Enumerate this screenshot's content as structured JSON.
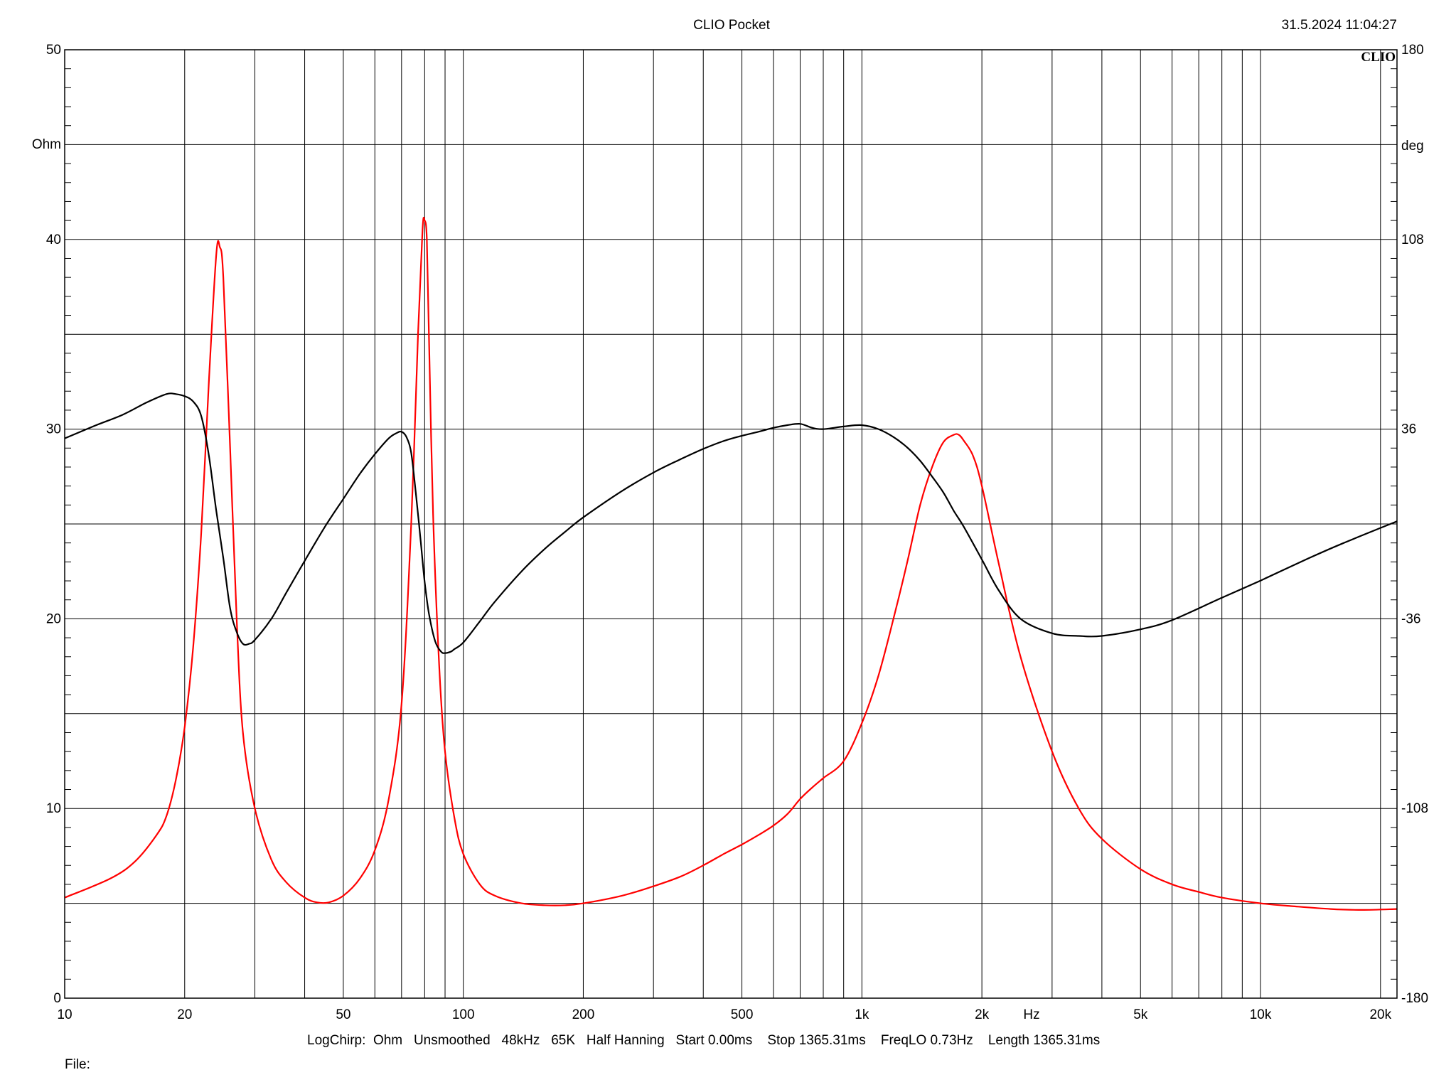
{
  "header": {
    "title": "CLIO Pocket",
    "timestamp": "31.5.2024 11:04:27",
    "brand": "CLIO"
  },
  "footer": {
    "settings": "LogChirp:  Ohm   Unsmoothed   48kHz   65K   Half Hanning   Start 0.00ms    Stop 1365.31ms    FreqLO 0.73Hz    Length 1365.31ms",
    "file_label": "File:"
  },
  "chart_data": {
    "type": "line",
    "title": "CLIO Pocket",
    "x_scale": "log",
    "xlim": [
      10,
      22000
    ],
    "xunit": "Hz",
    "x_tick_labels": [
      {
        "value": 10,
        "label": "10"
      },
      {
        "value": 20,
        "label": "20"
      },
      {
        "value": 50,
        "label": "50"
      },
      {
        "value": 100,
        "label": "100"
      },
      {
        "value": 200,
        "label": "200"
      },
      {
        "value": 500,
        "label": "500"
      },
      {
        "value": 1000,
        "label": "1k"
      },
      {
        "value": 2000,
        "label": "2k"
      },
      {
        "value": 5000,
        "label": "5k"
      },
      {
        "value": 10000,
        "label": "10k"
      },
      {
        "value": 20000,
        "label": "20k"
      }
    ],
    "left_axis": {
      "unit": "Ohm",
      "ylim": [
        0,
        50
      ],
      "ticks": [
        0,
        10,
        20,
        30,
        40,
        50
      ]
    },
    "right_axis": {
      "unit": "deg",
      "ylim": [
        -180,
        180
      ],
      "ticks": [
        -180,
        -108,
        -36,
        36,
        108,
        180
      ]
    },
    "grid": true,
    "series": [
      {
        "axis": "left",
        "color": "#ff0000",
        "x": [
          10,
          13,
          15,
          17,
          18,
          19,
          20,
          21,
          22,
          23,
          24,
          24.5,
          25,
          26,
          27,
          28,
          30,
          33,
          36,
          40,
          43,
          46,
          50,
          55,
          60,
          65,
          70,
          74,
          77,
          79,
          80,
          81,
          82,
          84,
          87,
          90,
          95,
          100,
          110,
          120,
          140,
          160,
          180,
          200,
          250,
          300,
          350,
          400,
          450,
          500,
          550,
          600,
          650,
          700,
          750,
          800,
          900,
          1000,
          1100,
          1200,
          1300,
          1400,
          1500,
          1600,
          1700,
          1750,
          1800,
          1900,
          2000,
          2200,
          2500,
          3000,
          3500,
          4000,
          5000,
          6000,
          7000,
          8000,
          10000,
          12000,
          15000,
          18000,
          22000
        ],
        "values": [
          5.3,
          6.3,
          7.2,
          8.6,
          9.6,
          11.5,
          14.3,
          18.5,
          24.5,
          32.5,
          39.2,
          39.6,
          38.0,
          29.0,
          20.0,
          14.0,
          10.0,
          7.3,
          6.1,
          5.3,
          5.05,
          5.05,
          5.4,
          6.3,
          7.8,
          10.5,
          15.5,
          25.0,
          35.0,
          40.5,
          41.0,
          40.0,
          35.0,
          25.5,
          17.5,
          13.0,
          9.5,
          7.6,
          6.0,
          5.4,
          5.0,
          4.9,
          4.9,
          5.0,
          5.4,
          5.9,
          6.4,
          7.0,
          7.6,
          8.1,
          8.6,
          9.1,
          9.7,
          10.5,
          11.1,
          11.6,
          12.5,
          14.5,
          17.0,
          20.0,
          23.0,
          26.0,
          28.0,
          29.3,
          29.7,
          29.7,
          29.4,
          28.6,
          27.0,
          23.0,
          18.0,
          13.0,
          10.0,
          8.4,
          6.8,
          6.0,
          5.6,
          5.3,
          5.0,
          4.85,
          4.7,
          4.65,
          4.7
        ]
      },
      {
        "axis": "right",
        "color": "#000000",
        "x": [
          10,
          12,
          14,
          16,
          18,
          19,
          20,
          21,
          22,
          23,
          24,
          25,
          26,
          27,
          28,
          29,
          30,
          33,
          36,
          40,
          45,
          50,
          55,
          60,
          65,
          68,
          70,
          72,
          74,
          76,
          78,
          80,
          82,
          85,
          88,
          90,
          93,
          95,
          100,
          110,
          120,
          140,
          160,
          180,
          200,
          250,
          300,
          350,
          400,
          450,
          500,
          550,
          600,
          650,
          700,
          750,
          800,
          900,
          1000,
          1100,
          1200,
          1300,
          1400,
          1500,
          1600,
          1700,
          1800,
          2000,
          2200,
          2500,
          3000,
          3500,
          4000,
          5000,
          6000,
          8000,
          10000,
          13000,
          16000,
          22000
        ],
        "values": [
          32.5,
          37.5,
          41.5,
          46.0,
          49.3,
          49.3,
          48.5,
          46.5,
          41.0,
          26.0,
          5.0,
          -13.0,
          -32.0,
          -41.0,
          -45.5,
          -45.5,
          -44.0,
          -36.0,
          -26.0,
          -14.0,
          -1.0,
          9.5,
          19.0,
          26.5,
          32.5,
          34.5,
          35.0,
          33.0,
          27.0,
          12.0,
          -5.0,
          -22.0,
          -34.0,
          -44.5,
          -48.5,
          -49.0,
          -48.5,
          -47.5,
          -45.0,
          -37.0,
          -29.5,
          -18.0,
          -9.5,
          -3.0,
          2.5,
          12.5,
          19.5,
          24.5,
          28.5,
          31.5,
          33.5,
          35.0,
          36.5,
          37.5,
          38.0,
          36.5,
          36.0,
          37.0,
          37.5,
          36.0,
          33.0,
          29.0,
          24.0,
          18.0,
          12.0,
          5.0,
          -1.0,
          -13.5,
          -25.0,
          -36.0,
          -41.5,
          -42.5,
          -42.5,
          -40.0,
          -36.5,
          -28.0,
          -21.5,
          -13.5,
          -7.5,
          1.0
        ]
      }
    ]
  }
}
